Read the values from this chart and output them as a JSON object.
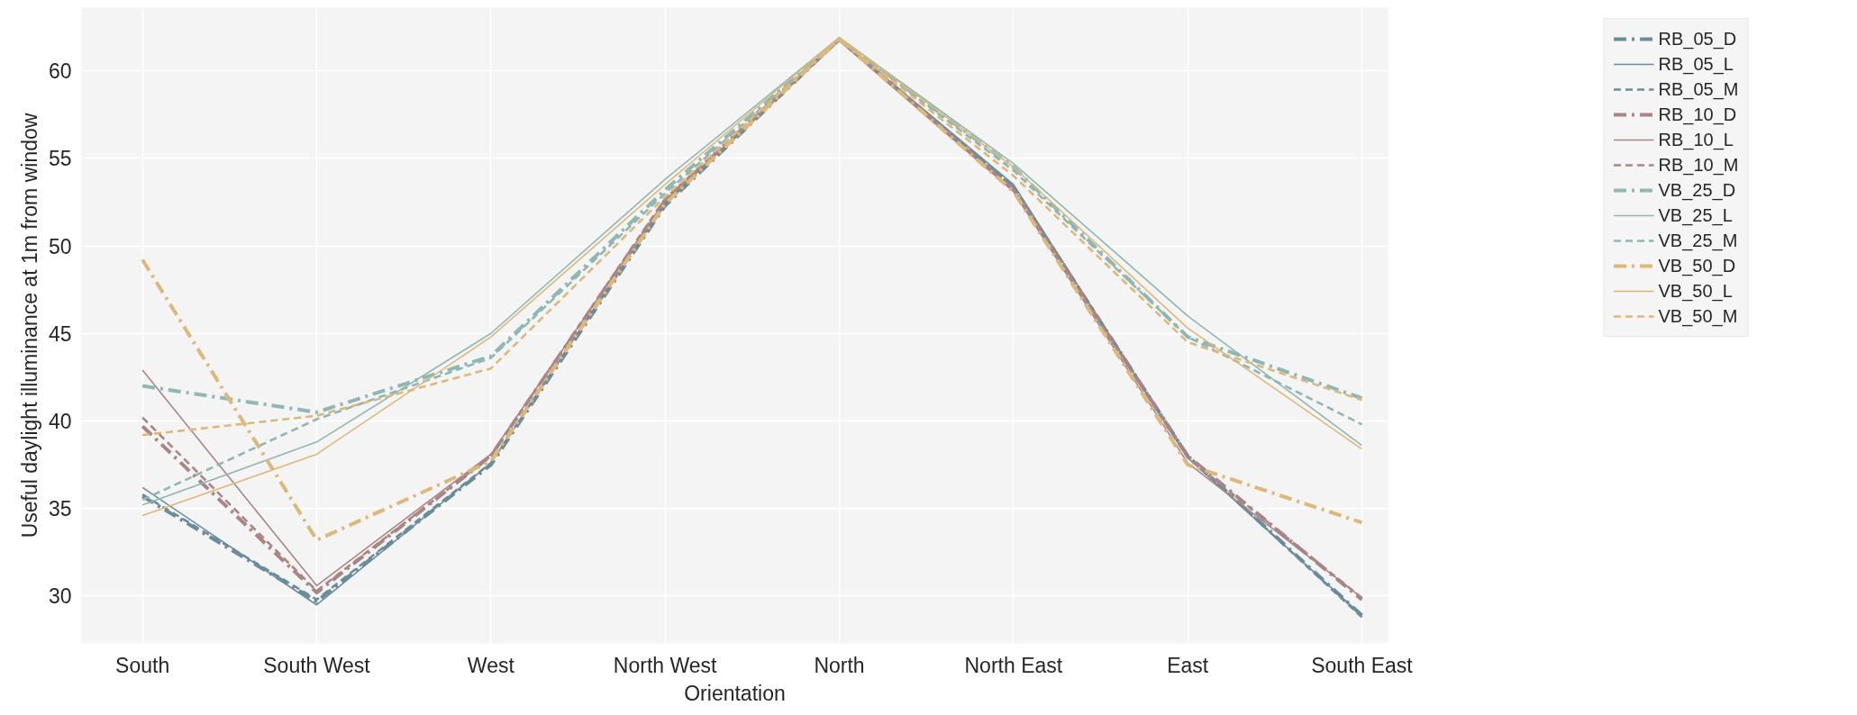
{
  "chart_data": {
    "type": "line",
    "xlabel": "Orientation",
    "ylabel": "Useful daylight illuminance at 1m from window",
    "categories": [
      "South",
      "South West",
      "West",
      "North West",
      "North",
      "North East",
      "East",
      "South East"
    ],
    "ylim": [
      27.3,
      63.6
    ],
    "yticks": [
      30,
      35,
      40,
      45,
      50,
      55,
      60
    ],
    "grid": true,
    "legend": "top right",
    "marker": "none",
    "series": [
      {
        "name": "RB_05_D",
        "color": "#6a8d9c",
        "line_style": "dashdot",
        "values": [
          35.7,
          29.7,
          37.5,
          52.3,
          61.8,
          53.3,
          38.0,
          28.9
        ]
      },
      {
        "name": "RB_05_L",
        "color": "#6a8d9c",
        "line_style": "solid",
        "values": [
          36.2,
          29.5,
          37.6,
          52.5,
          61.8,
          53.5,
          37.9,
          28.9
        ]
      },
      {
        "name": "RB_05_M",
        "color": "#6a8d9c",
        "line_style": "dashed",
        "values": [
          35.8,
          29.8,
          37.6,
          52.4,
          61.8,
          53.4,
          38.0,
          28.8
        ]
      },
      {
        "name": "RB_10_D",
        "color": "#a98585",
        "line_style": "dashdot",
        "values": [
          39.7,
          30.2,
          38.0,
          52.6,
          61.8,
          53.2,
          38.0,
          29.8
        ]
      },
      {
        "name": "RB_10_L",
        "color": "#a98585",
        "line_style": "solid",
        "values": [
          42.9,
          30.6,
          38.1,
          52.6,
          61.7,
          53.1,
          37.6,
          29.9
        ]
      },
      {
        "name": "RB_10_M",
        "color": "#a98585",
        "line_style": "dashed",
        "values": [
          40.2,
          30.3,
          38.0,
          52.7,
          61.8,
          53.2,
          37.9,
          29.9
        ]
      },
      {
        "name": "VB_25_D",
        "color": "#8fb7b3",
        "line_style": "dashdot",
        "values": [
          42.0,
          40.5,
          43.7,
          53.2,
          61.8,
          54.5,
          44.8,
          41.3
        ]
      },
      {
        "name": "VB_25_L",
        "color": "#8fb7b3",
        "line_style": "solid",
        "values": [
          35.2,
          38.8,
          45.0,
          53.8,
          61.9,
          54.7,
          46.0,
          38.6
        ]
      },
      {
        "name": "VB_25_M",
        "color": "#8fb7b3",
        "line_style": "dashed",
        "values": [
          35.5,
          40.1,
          43.6,
          53.0,
          61.8,
          54.3,
          44.8,
          39.8
        ]
      },
      {
        "name": "VB_50_D",
        "color": "#ddb878",
        "line_style": "dashdot",
        "values": [
          49.2,
          33.2,
          37.7,
          52.4,
          61.8,
          53.1,
          37.5,
          34.2
        ]
      },
      {
        "name": "VB_50_L",
        "color": "#ddb878",
        "line_style": "solid",
        "values": [
          34.6,
          38.1,
          44.8,
          53.5,
          61.9,
          54.5,
          45.3,
          38.4
        ]
      },
      {
        "name": "VB_50_M",
        "color": "#ddb878",
        "line_style": "dashed",
        "values": [
          39.2,
          40.3,
          43.0,
          52.8,
          61.8,
          54.0,
          44.5,
          41.2
        ]
      }
    ]
  }
}
